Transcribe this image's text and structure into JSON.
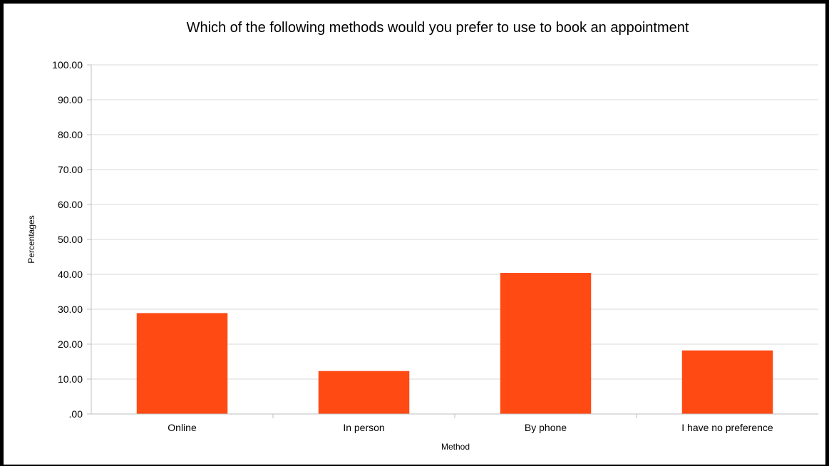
{
  "chart_data": {
    "type": "bar",
    "title": "Which of the following methods would you prefer to use to book an appointment",
    "xlabel": "Method",
    "ylabel": "Percentages",
    "categories": [
      "Online",
      "In person",
      "By phone",
      "I have no preference"
    ],
    "values": [
      28.9,
      12.3,
      40.4,
      18.2
    ],
    "ylim": [
      0,
      100
    ],
    "y_ticks": [
      ".00",
      "10.00",
      "20.00",
      "30.00",
      "40.00",
      "50.00",
      "60.00",
      "70.00",
      "80.00",
      "90.00",
      "100.00"
    ],
    "grid": true,
    "legend": "none",
    "colors": {
      "bar": "#ff4a14",
      "grid": "#d9d9d9",
      "axis": "#bfbfbf"
    }
  }
}
